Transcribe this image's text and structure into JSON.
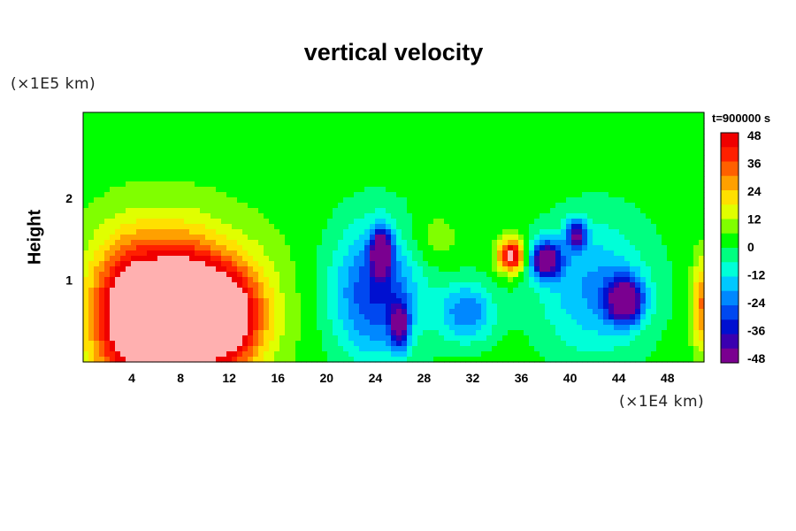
{
  "chart_data": {
    "type": "heatmap",
    "title": "vertical velocity",
    "ylabel": "Height",
    "yunit": "(×1E5 km)",
    "xunit": "(×1E4 km)",
    "time_label": "t=900000 s",
    "xlim": [
      0,
      51
    ],
    "ylim": [
      0,
      3.05
    ],
    "xticks": [
      4,
      8,
      12,
      16,
      20,
      24,
      28,
      32,
      36,
      40,
      44,
      48
    ],
    "yticks": [
      1,
      2
    ],
    "colorbar": {
      "min": -48,
      "max": 48,
      "ticks": [
        48,
        36,
        24,
        12,
        0,
        -12,
        -24,
        -36,
        -48
      ],
      "stops": [
        {
          "v": -48,
          "color": "#7a0090"
        },
        {
          "v": -42,
          "color": "#3a00b0"
        },
        {
          "v": -36,
          "color": "#0010d0"
        },
        {
          "v": -30,
          "color": "#0048f0"
        },
        {
          "v": -24,
          "color": "#0088ff"
        },
        {
          "v": -18,
          "color": "#00c8ff"
        },
        {
          "v": -12,
          "color": "#00ffd8"
        },
        {
          "v": -6,
          "color": "#00ff80"
        },
        {
          "v": 0,
          "color": "#00ff00"
        },
        {
          "v": 6,
          "color": "#80ff00"
        },
        {
          "v": 12,
          "color": "#e0ff00"
        },
        {
          "v": 18,
          "color": "#ffe000"
        },
        {
          "v": 24,
          "color": "#ffa000"
        },
        {
          "v": 30,
          "color": "#ff6000"
        },
        {
          "v": 36,
          "color": "#ff2000"
        },
        {
          "v": 42,
          "color": "#f00000"
        },
        {
          "v": 48,
          "color": "#ffb0b0"
        }
      ]
    },
    "features": [
      {
        "x": 4.2,
        "y": 0.55,
        "rx": 3.6,
        "ry": 0.95,
        "value": 55
      },
      {
        "x": 8.5,
        "y": 0.6,
        "rx": 3.2,
        "ry": 0.85,
        "value": 52
      },
      {
        "x": 12.0,
        "y": 0.55,
        "rx": 3.2,
        "ry": 0.7,
        "value": 44
      },
      {
        "x": 8.0,
        "y": 0.7,
        "rx": 8.5,
        "ry": 1.1,
        "value": 18
      },
      {
        "x": 24.0,
        "y": 0.85,
        "rx": 4.0,
        "ry": 0.9,
        "value": -34
      },
      {
        "x": 24.5,
        "y": 1.35,
        "rx": 0.9,
        "ry": 0.3,
        "value": -52
      },
      {
        "x": 26.0,
        "y": 0.45,
        "rx": 0.8,
        "ry": 0.3,
        "value": -40
      },
      {
        "x": 31.5,
        "y": 0.6,
        "rx": 2.5,
        "ry": 0.4,
        "value": -26
      },
      {
        "x": 35.2,
        "y": 1.3,
        "rx": 1.2,
        "ry": 0.22,
        "value": 52
      },
      {
        "x": 38.0,
        "y": 1.25,
        "rx": 1.4,
        "ry": 0.25,
        "value": -50
      },
      {
        "x": 44.5,
        "y": 0.75,
        "rx": 1.6,
        "ry": 0.3,
        "value": -50
      },
      {
        "x": 42.0,
        "y": 0.9,
        "rx": 5.0,
        "ry": 0.9,
        "value": -22
      },
      {
        "x": 40.5,
        "y": 1.55,
        "rx": 0.9,
        "ry": 0.2,
        "value": -38
      },
      {
        "x": 28.5,
        "y": 1.5,
        "rx": 2.5,
        "ry": 0.35,
        "value": 8
      },
      {
        "x": 50.8,
        "y": 0.7,
        "rx": 0.9,
        "ry": 0.6,
        "value": 28
      }
    ]
  }
}
